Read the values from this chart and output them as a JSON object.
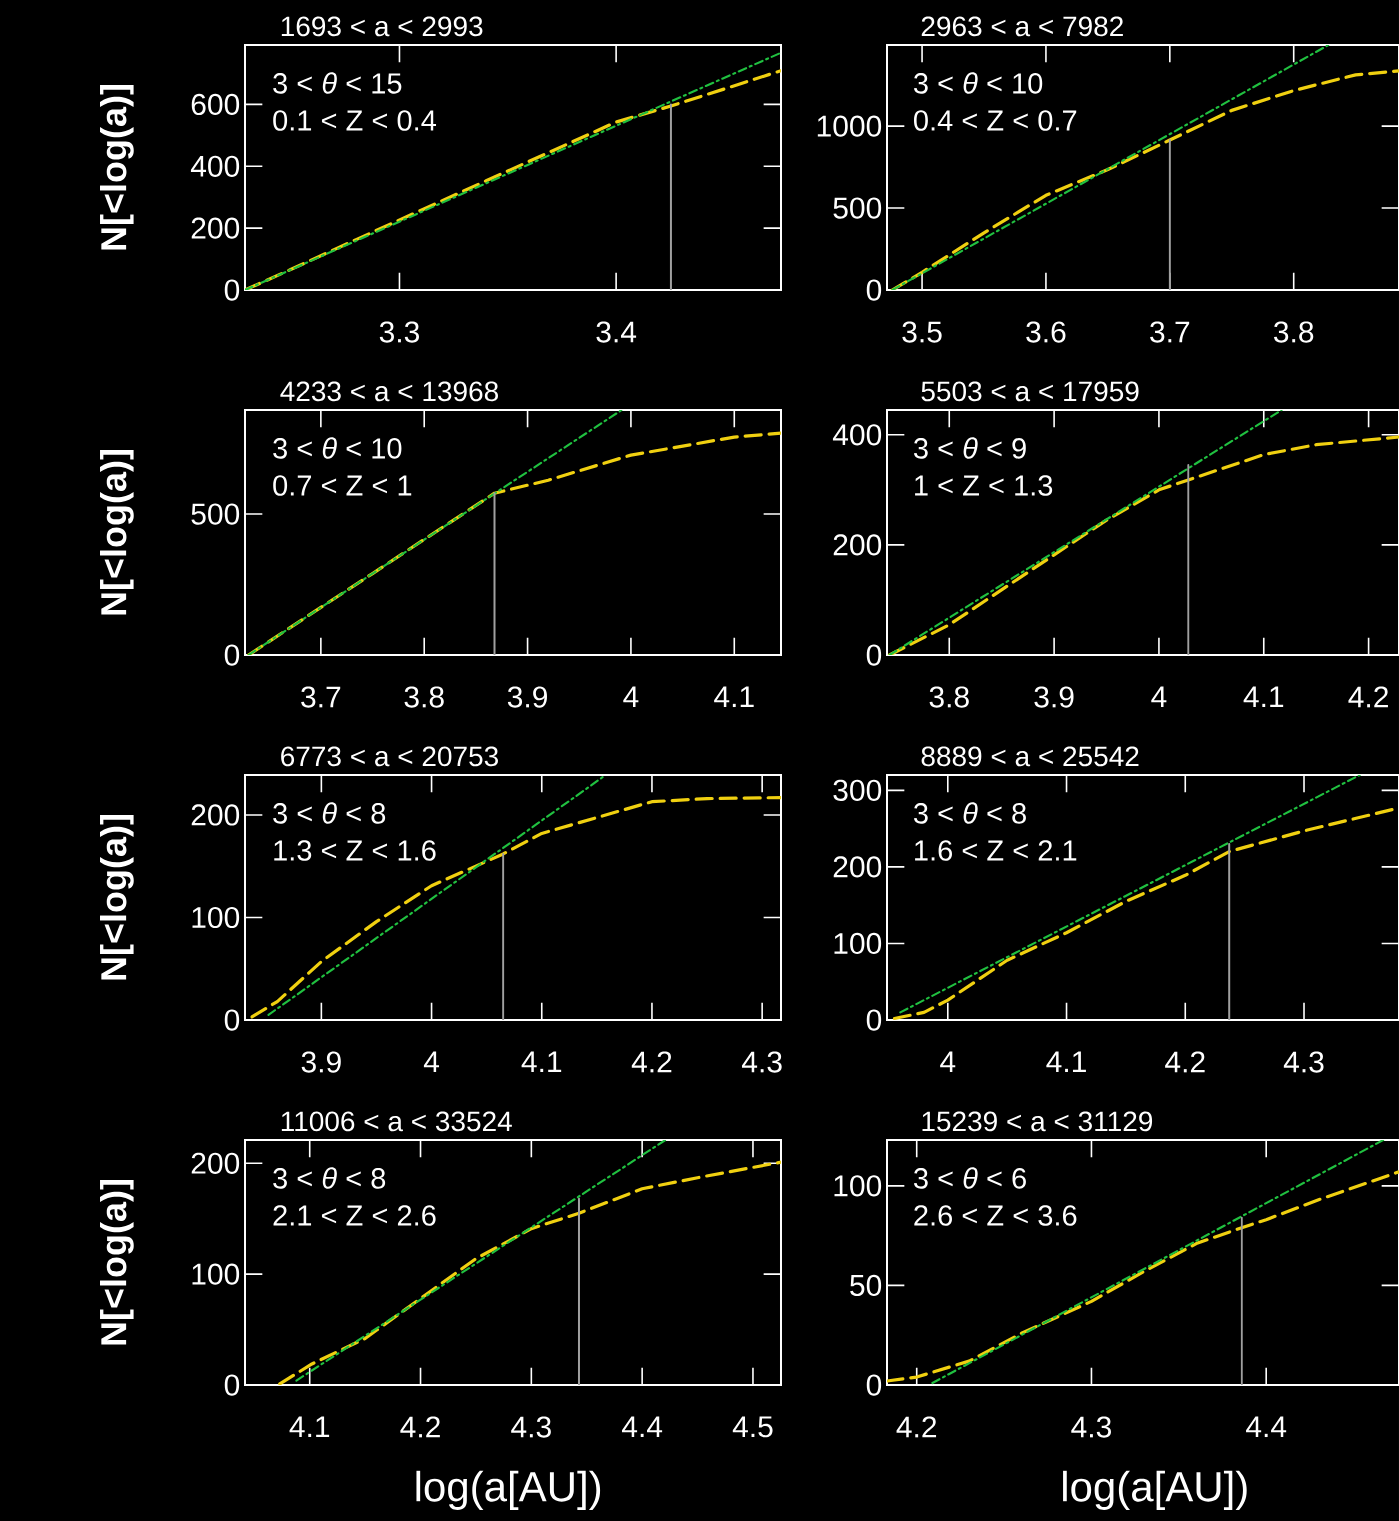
{
  "chart_data": [
    {
      "type": "line",
      "title": "1693 < a < 2993",
      "ylabel": "N[<log(a)]",
      "annotations": [
        "3 < *θ* < 15",
        "0.1 < Z < 0.4"
      ],
      "xlim": [
        3.2287,
        3.4761
      ],
      "ylim": [
        0,
        792
      ],
      "xticks": [
        3.3,
        3.4
      ],
      "yticks": [
        0,
        200,
        400,
        600
      ],
      "series": [
        {
          "color": "#f0d010",
          "line_style": "dashed",
          "x": [
            3.2287,
            3.25,
            3.28,
            3.31,
            3.34,
            3.37,
            3.4,
            3.4253,
            3.45,
            3.4761
          ],
          "values": [
            0,
            67,
            163,
            258,
            353,
            448,
            543,
            595,
            650,
            709
          ]
        },
        {
          "color": "#20c040",
          "line_style": "dashdot",
          "x": [
            3.2287,
            3.4761
          ],
          "values": [
            0,
            767
          ]
        },
        {
          "color": "#a0a0a0",
          "line_style": "solid",
          "x": [
            3.4253,
            3.4253
          ],
          "values": [
            0,
            600
          ]
        }
      ]
    },
    {
      "type": "line",
      "title": "2963 < a < 7982",
      "annotations": [
        "3 < *θ* < 10",
        "0.4 < Z < 0.7"
      ],
      "xlim": [
        3.4717,
        3.885
      ],
      "ylim": [
        0,
        1495
      ],
      "xticks": [
        3.5,
        3.6,
        3.7,
        3.8
      ],
      "yticks": [
        0,
        500,
        1000
      ],
      "series": [
        {
          "color": "#f0d010",
          "line_style": "dashed",
          "x": [
            3.4759,
            3.5,
            3.55,
            3.6,
            3.65,
            3.7,
            3.75,
            3.8,
            3.85,
            3.885
          ],
          "values": [
            0,
            108,
            349,
            578,
            735,
            915,
            1096,
            1217,
            1313,
            1337
          ]
        },
        {
          "color": "#20c040",
          "line_style": "dashdot",
          "x": [
            3.476,
            3.828
          ],
          "values": [
            0,
            1495
          ]
        },
        {
          "color": "#a0a0a0",
          "line_style": "solid",
          "x": [
            3.7,
            3.7
          ],
          "values": [
            0,
            915
          ]
        }
      ]
    },
    {
      "type": "line",
      "title": "4233 < a < 13968",
      "ylabel": "N[<log(a)]",
      "annotations": [
        "3 < *θ* < 10",
        "0.7 < Z < 1"
      ],
      "xlim": [
        3.6266,
        4.1452
      ],
      "ylim": [
        0,
        869
      ],
      "xticks": [
        3.7,
        3.8,
        3.9,
        4,
        4.1
      ],
      "yticks": [
        0,
        500
      ],
      "series": [
        {
          "color": "#f0d010",
          "line_style": "dashed",
          "x": [
            3.63,
            3.7,
            3.75,
            3.8,
            3.868,
            3.92,
            4.0,
            4.1,
            4.1452
          ],
          "values": [
            0,
            169,
            289,
            410,
            574,
            620,
            709,
            773,
            787
          ]
        },
        {
          "color": "#20c040",
          "line_style": "dashdot",
          "x": [
            3.63,
            3.991
          ],
          "values": [
            0,
            869
          ]
        },
        {
          "color": "#a0a0a0",
          "line_style": "solid",
          "x": [
            3.868,
            3.868
          ],
          "values": [
            0,
            574
          ]
        }
      ]
    },
    {
      "type": "line",
      "title": "5503 < a < 17959",
      "annotations": [
        "3 < *θ* < 9",
        "1 < Z < 1.3"
      ],
      "xlim": [
        3.7406,
        4.229
      ],
      "ylim": [
        0,
        445
      ],
      "xticks": [
        3.8,
        3.9,
        4,
        4.1,
        4.2
      ],
      "yticks": [
        0,
        200,
        400
      ],
      "series": [
        {
          "color": "#f0d010",
          "line_style": "dashed",
          "x": [
            3.743,
            3.8,
            3.9,
            3.95,
            4.0,
            4.028,
            4.1,
            4.15,
            4.229
          ],
          "values": [
            0,
            55,
            182,
            245,
            300,
            318,
            364,
            382,
            396
          ]
        },
        {
          "color": "#20c040",
          "line_style": "dashdot",
          "x": [
            3.743,
            4.117
          ],
          "values": [
            0,
            445
          ]
        },
        {
          "color": "#a0a0a0",
          "line_style": "solid",
          "x": [
            4.028,
            4.028
          ],
          "values": [
            0,
            345
          ]
        }
      ]
    },
    {
      "type": "line",
      "title": "6773 < a < 20753",
      "ylabel": "N[<log(a)]",
      "annotations": [
        "3 < *θ* < 8",
        "1.3 < Z < 1.6"
      ],
      "xlim": [
        3.8307,
        4.3171
      ],
      "ylim": [
        0,
        239
      ],
      "xticks": [
        3.9,
        4,
        4.1,
        4.2,
        4.3
      ],
      "yticks": [
        0,
        100,
        200
      ],
      "series": [
        {
          "color": "#f0d010",
          "line_style": "dashed",
          "x": [
            3.837,
            3.86,
            3.9,
            3.95,
            4.0,
            4.065,
            4.1,
            4.2,
            4.25,
            4.3171
          ],
          "values": [
            3,
            18,
            57,
            96,
            131,
            162,
            182,
            213,
            216,
            217
          ]
        },
        {
          "color": "#20c040",
          "line_style": "dashdot",
          "x": [
            3.852,
            4.158
          ],
          "values": [
            5,
            239
          ]
        },
        {
          "color": "#a0a0a0",
          "line_style": "solid",
          "x": [
            4.065,
            4.065
          ],
          "values": [
            0,
            162
          ]
        }
      ]
    },
    {
      "type": "line",
      "title": "8889 < a < 25542",
      "annotations": [
        "3 < *θ* < 8",
        "1.6 < Z < 2.1"
      ],
      "xlim": [
        3.9488,
        4.38
      ],
      "ylim": [
        0,
        320
      ],
      "xticks": [
        4,
        4.1,
        4.2,
        4.3
      ],
      "yticks": [
        0,
        100,
        200,
        300
      ],
      "series": [
        {
          "color": "#f0d010",
          "line_style": "dashed",
          "x": [
            3.955,
            3.98,
            4.0,
            4.05,
            4.1,
            4.15,
            4.2,
            4.237,
            4.3,
            4.38
          ],
          "values": [
            2,
            10,
            26,
            78,
            114,
            155,
            189,
            220,
            247,
            277
          ]
        },
        {
          "color": "#20c040",
          "line_style": "dashdot",
          "x": [
            3.96,
            4.347
          ],
          "values": [
            10,
            320
          ]
        },
        {
          "color": "#a0a0a0",
          "line_style": "solid",
          "x": [
            4.237,
            4.237
          ],
          "values": [
            0,
            230
          ]
        }
      ]
    },
    {
      "type": "line",
      "title": "11006 < a < 33524",
      "ylabel": "N[<log(a)]",
      "xlabel": "log(a[AU])",
      "annotations": [
        "3 < *θ* < 8",
        "2.1 < Z < 2.6"
      ],
      "xlim": [
        4.0416,
        4.5253
      ],
      "ylim": [
        0,
        221
      ],
      "xticks": [
        4.1,
        4.2,
        4.3,
        4.4,
        4.5
      ],
      "yticks": [
        0,
        100,
        200
      ],
      "series": [
        {
          "color": "#f0d010",
          "line_style": "dashed",
          "x": [
            4.073,
            4.102,
            4.15,
            4.2,
            4.25,
            4.3,
            4.343,
            4.4,
            4.45,
            4.5253
          ],
          "values": [
            1,
            19,
            42,
            78,
            114,
            141,
            155,
            177,
            187,
            201
          ]
        },
        {
          "color": "#20c040",
          "line_style": "dashdot",
          "x": [
            4.088,
            4.421
          ],
          "values": [
            4,
            221
          ]
        },
        {
          "color": "#a0a0a0",
          "line_style": "solid",
          "x": [
            4.343,
            4.343
          ],
          "values": [
            0,
            168
          ]
        }
      ]
    },
    {
      "type": "line",
      "title": "15239 < a < 31129",
      "xlabel": "log(a[AU])",
      "annotations": [
        "3 < *θ* < 6",
        "2.6 < Z < 3.6"
      ],
      "xlim": [
        4.183,
        4.476
      ],
      "ylim": [
        0,
        123
      ],
      "xticks": [
        4.2,
        4.3,
        4.4
      ],
      "yticks": [
        0,
        50,
        100
      ],
      "series": [
        {
          "color": "#f0d010",
          "line_style": "dashed",
          "x": [
            4.183,
            4.2,
            4.23,
            4.26,
            4.3,
            4.33,
            4.36,
            4.386,
            4.4,
            4.43,
            4.476
          ],
          "values": [
            2,
            4,
            12,
            26,
            42,
            57,
            71,
            79,
            83,
            93,
            107
          ]
        },
        {
          "color": "#20c040",
          "line_style": "dashdot",
          "x": [
            4.209,
            4.467
          ],
          "values": [
            1,
            123
          ]
        },
        {
          "color": "#a0a0a0",
          "line_style": "solid",
          "x": [
            4.386,
            4.386
          ],
          "values": [
            0,
            84
          ]
        }
      ]
    }
  ]
}
